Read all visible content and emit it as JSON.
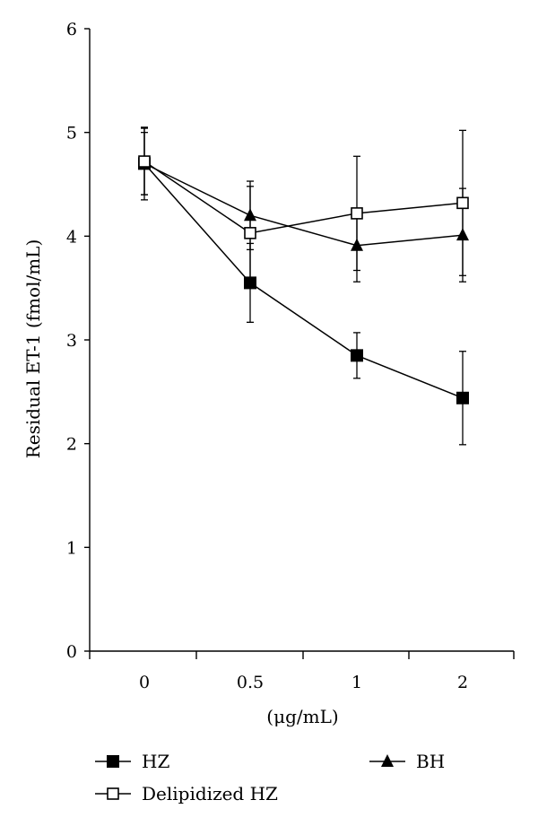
{
  "chart_data": {
    "type": "line",
    "title": "",
    "xlabel": "(μg/mL)",
    "ylabel": "Residual ET-1 (fmol/mL)",
    "categories": [
      "0",
      "0.5",
      "1",
      "2"
    ],
    "ylim": [
      0,
      6
    ],
    "yticks": [
      "0",
      "1",
      "2",
      "3",
      "4",
      "5",
      "6"
    ],
    "grid": false,
    "legend_position": "bottom",
    "series": [
      {
        "name": "HZ",
        "marker": "filled-square",
        "values": [
          4.7,
          3.55,
          2.85,
          2.44
        ],
        "error": [
          0.35,
          0.38,
          0.22,
          0.45
        ]
      },
      {
        "name": "Delipidized HZ",
        "marker": "open-square",
        "values": [
          4.72,
          4.03,
          4.22,
          4.32
        ],
        "error": [
          0.32,
          0.45,
          0.55,
          0.7
        ]
      },
      {
        "name": "BH",
        "marker": "filled-triangle",
        "values": [
          4.7,
          4.2,
          3.91,
          4.01
        ],
        "error": [
          0.3,
          0.33,
          0.35,
          0.45
        ]
      }
    ]
  }
}
